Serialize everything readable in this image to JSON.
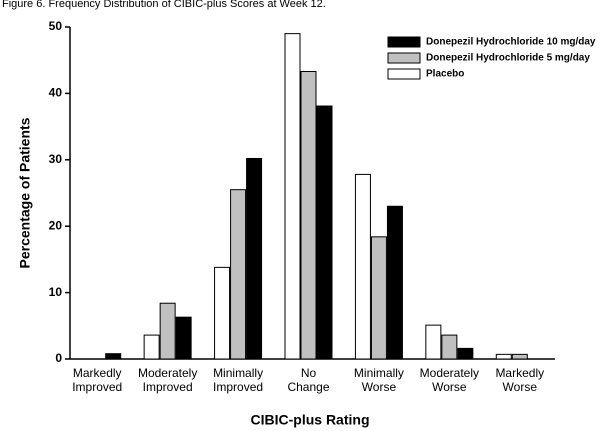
{
  "chart_data": {
    "type": "bar",
    "title": "Figure 6. Frequency Distribution of CIBIC-plus Scores at Week 12.",
    "x_label": "CIBIC-plus Rating",
    "y_label": "Percentage of Patients",
    "categories": [
      "Markedly Improved",
      "Moderately Improved",
      "Minimally Improved",
      "No Change",
      "Minimally Worse",
      "Moderately Worse",
      "Markedly Worse"
    ],
    "series": [
      {
        "name": "Donepezil Hydrochloride 10 mg/day",
        "color": "#000000",
        "values": [
          0.8,
          6.3,
          30.2,
          38.1,
          23,
          1.6,
          0
        ]
      },
      {
        "name": "Donepezil Hydrochloride 5 mg/day",
        "color": "#c0c0c0",
        "values": [
          0,
          8.4,
          25.5,
          43.3,
          18.4,
          3.6,
          0.7
        ]
      },
      {
        "name": "Placebo",
        "color": "#ffffff",
        "values": [
          0,
          3.6,
          13.8,
          49,
          27.8,
          5.1,
          0.7
        ]
      }
    ],
    "ylim": [
      0,
      50
    ],
    "yticks": [
      0,
      10,
      20,
      30,
      40,
      50
    ],
    "grid": false,
    "legend": "top-right"
  }
}
